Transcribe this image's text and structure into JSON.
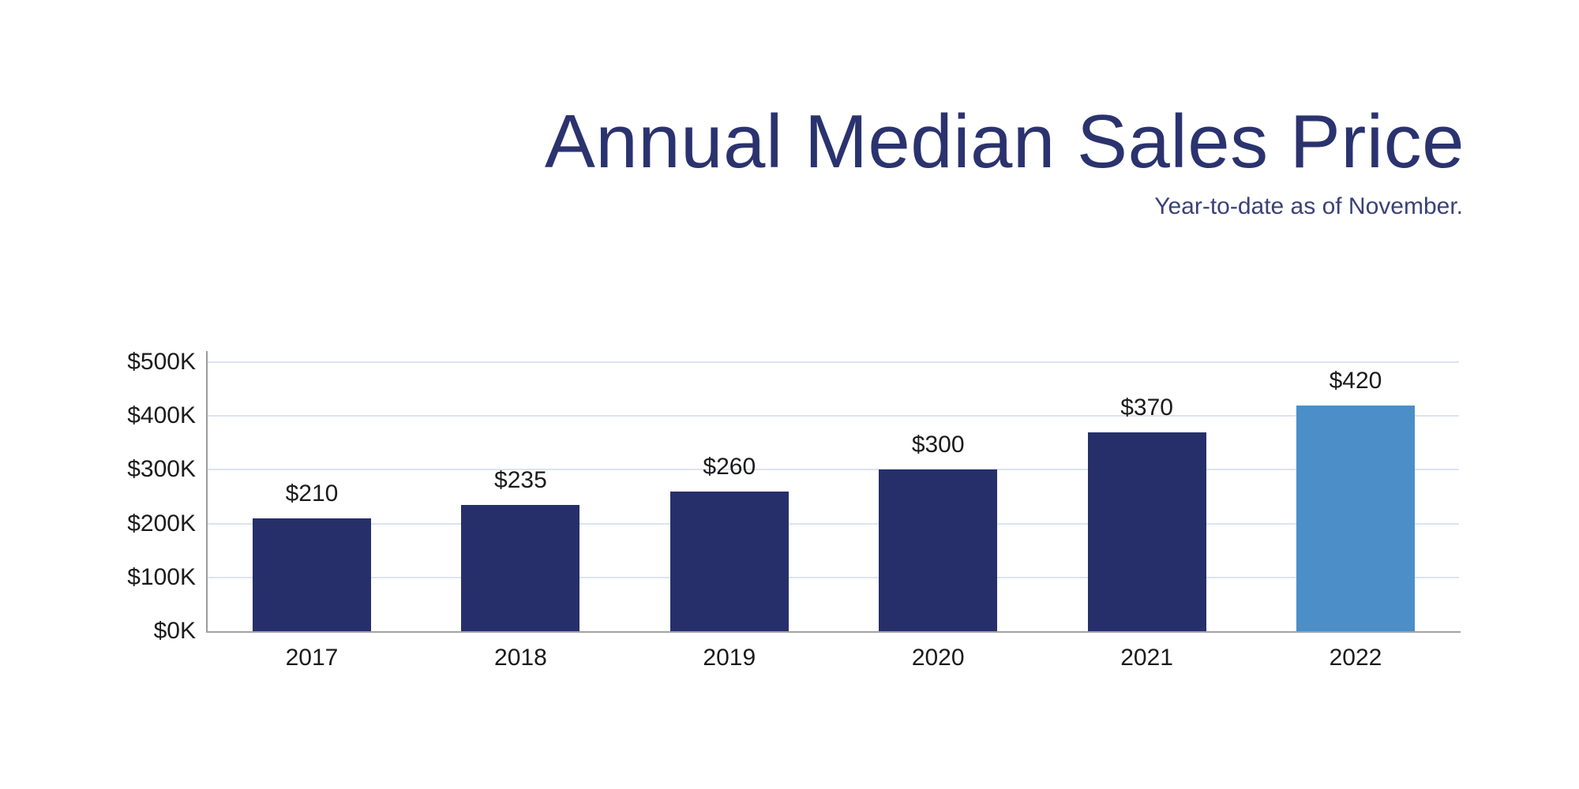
{
  "header": {
    "title": "Annual Median Sales Price",
    "subtitle": "Year-to-date as of November.",
    "title_color": "#2b336f",
    "subtitle_color": "#3a4178"
  },
  "chart_data": {
    "type": "bar",
    "title": "Annual Median Sales Price",
    "subtitle": "Year-to-date as of November.",
    "categories": [
      "2017",
      "2018",
      "2019",
      "2020",
      "2021",
      "2022"
    ],
    "values": [
      210,
      235,
      260,
      300,
      370,
      420
    ],
    "value_labels": [
      "$210",
      "$235",
      "$260",
      "$300",
      "$370",
      "$420"
    ],
    "values_unit": "thousands of dollars",
    "xlabel": "",
    "ylabel": "",
    "ylim": [
      0,
      500
    ],
    "y_ticks": [
      {
        "value": 0,
        "label": "$0K"
      },
      {
        "value": 100,
        "label": "$100K"
      },
      {
        "value": 200,
        "label": "$200K"
      },
      {
        "value": 300,
        "label": "$300K"
      },
      {
        "value": 400,
        "label": "$400K"
      },
      {
        "value": 500,
        "label": "$500K"
      }
    ],
    "grid": true,
    "legend": "none",
    "bar_color": "#272f6b",
    "highlight_bar_color": "#4b8ec8",
    "highlight_category": "2022",
    "gridline_color": "#dce4ee",
    "axis_color": "#9c9c9c",
    "tick_label_color": "#1b1b1b"
  }
}
